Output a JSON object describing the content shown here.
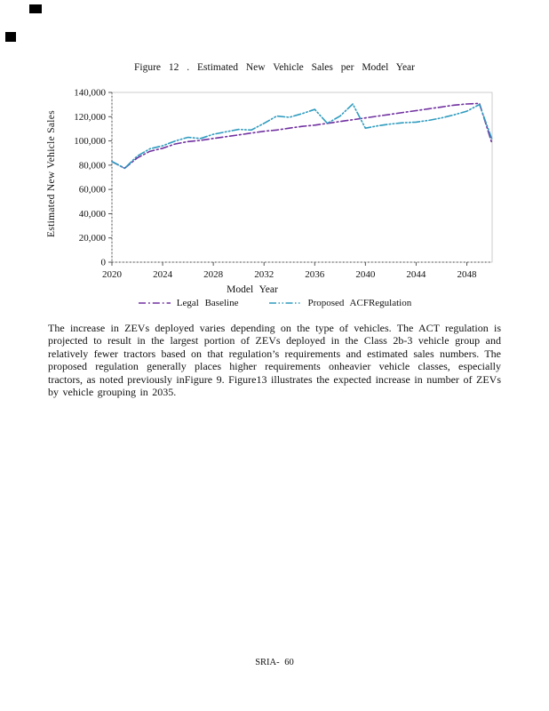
{
  "page": {
    "footer": "SRIA- 60"
  },
  "figure": {
    "caption": "Figure 12 . Estimated New Vehicle Sales per Model Year"
  },
  "paragraph": {
    "text": "The increase in ZEVs deployed varies depending on the type of vehicles. The ACT regulation is projected to result in the largest portion of ZEVs deployed in the Class 2b-3 vehicle group and relatively fewer tractors based on that regulation’s requirements and estimated sales numbers. The proposed regulation generally places higher requirements onheavier vehicle classes, especially tractors, as noted previously inFigure 9. Figure13 illustrates the expected increase in number of ZEVs by vehicle grouping in 2035."
  },
  "chart_data": {
    "type": "line",
    "title": "Figure 12 . Estimated New Vehicle Sales per Model Year",
    "xlabel": "Model Year",
    "ylabel": "Estimated New Vehicle Sales",
    "xlim": [
      2020,
      2050
    ],
    "ylim": [
      0,
      140000
    ],
    "x_ticks": [
      2020,
      2024,
      2028,
      2032,
      2036,
      2040,
      2044,
      2048
    ],
    "y_ticks": [
      0,
      20000,
      40000,
      60000,
      80000,
      100000,
      120000,
      140000
    ],
    "grid": false,
    "legend_position": "bottom",
    "x": [
      2020,
      2021,
      2022,
      2023,
      2024,
      2025,
      2026,
      2027,
      2028,
      2029,
      2030,
      2031,
      2032,
      2033,
      2034,
      2035,
      2036,
      2037,
      2038,
      2039,
      2040,
      2041,
      2042,
      2043,
      2044,
      2045,
      2046,
      2047,
      2048,
      2049,
      2050
    ],
    "series": [
      {
        "name": "Legal Baseline",
        "color": "#7030A0",
        "line_style": "dash-dot",
        "values": [
          83000,
          77500,
          86000,
          91500,
          94000,
          97500,
          99500,
          100500,
          102000,
          103500,
          105000,
          106500,
          108000,
          109000,
          110500,
          112000,
          113000,
          114500,
          116000,
          117500,
          119000,
          120500,
          122000,
          123500,
          125000,
          126500,
          128000,
          129500,
          130500,
          131000,
          97500
        ]
      },
      {
        "name": "Proposed ACFRegulation",
        "color": "#2E9BBF",
        "line_style": "dash-dot-dot",
        "values": [
          83000,
          77500,
          87500,
          93500,
          96000,
          100000,
          103000,
          102000,
          105500,
          107500,
          109500,
          109000,
          114500,
          120500,
          119500,
          122500,
          126000,
          114500,
          120500,
          130500,
          110500,
          112500,
          114000,
          115000,
          115500,
          117000,
          119000,
          121500,
          124500,
          130000,
          101000
        ]
      }
    ]
  }
}
